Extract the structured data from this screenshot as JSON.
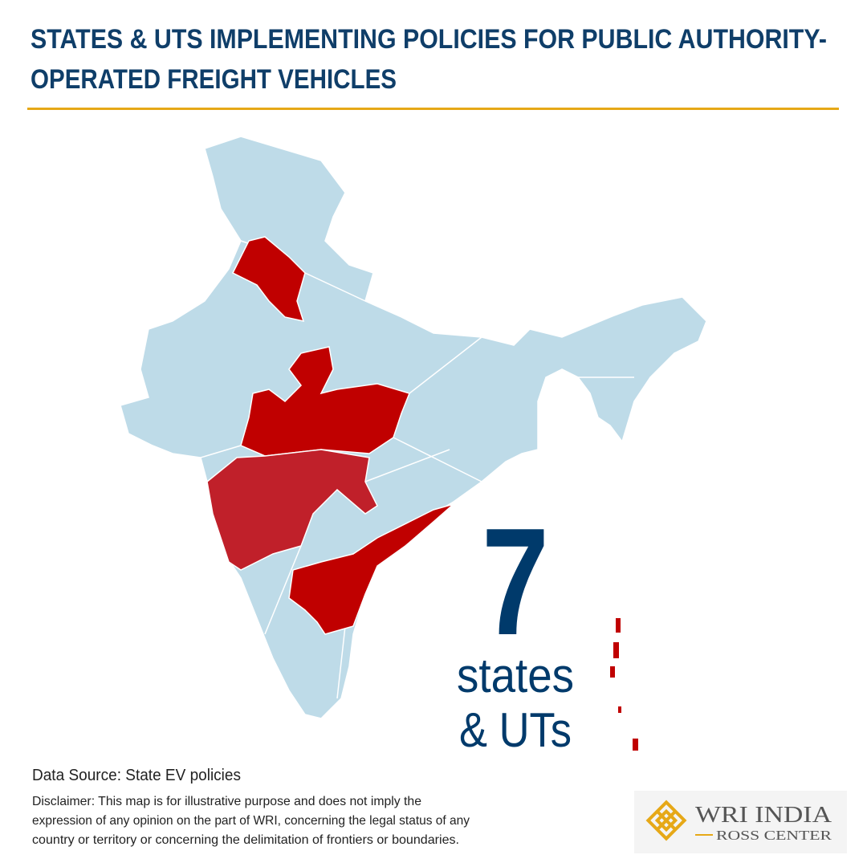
{
  "header": {
    "title_lines": [
      "STATES & UTS IMPLEMENTING POLICIES FOR PUBLIC AUTHORITY-",
      "OPERATED FREIGHT VEHICLES"
    ]
  },
  "highlight": {
    "count": 7,
    "caption_lines": [
      "states",
      "& UTs"
    ]
  },
  "footer": {
    "source": "Data Source: State EV policies",
    "disclaimer_lines": [
      "Disclaimer: This map is for illustrative purpose and does not imply the",
      "expression of any opinion on the part of WRI, concerning the legal status of any",
      "country or territory or concerning the delimitation of frontiers or boundaries."
    ]
  },
  "logo": {
    "name": "WRI INDIA",
    "subtitle": "ROSS CENTER"
  }
}
